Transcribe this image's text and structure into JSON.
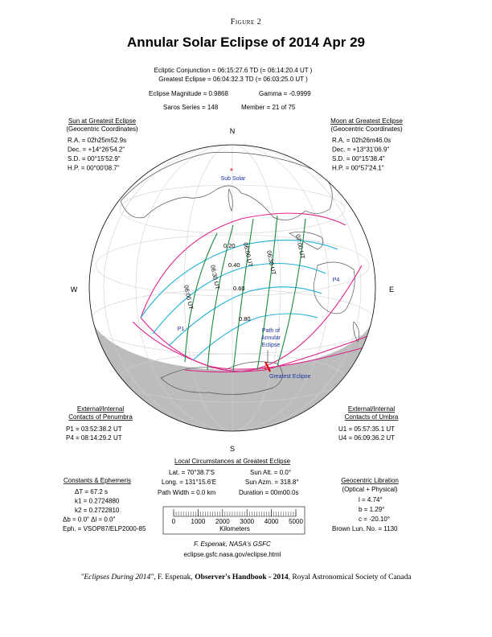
{
  "figure_label": "Figure 2",
  "title": "Annular Solar Eclipse of  2014 Apr 29",
  "summary": {
    "ecliptic_conjunction": "Ecliptic Conjunction = 06:15:27.6 TD   (= 06:14:20.4 UT )",
    "greatest_eclipse": "Greatest Eclipse = 06:04:32.3 TD   (= 06:03:25.0 UT )",
    "magnitude": "Eclipse Magnitude = 0.9868",
    "gamma": "Gamma = -0.9999",
    "saros": "Saros Series = 148",
    "member": "Member = 21 of 75"
  },
  "sun": {
    "heading": "Sun at Greatest Eclipse",
    "subheading": "(Geocentric Coordinates)",
    "rows": [
      "R.A. = 02h25m52.9s",
      "Dec. = +14°26'54.2\"",
      "S.D. = 00°15'52.9\"",
      "H.P. = 00°00'08.7\""
    ]
  },
  "moon": {
    "heading": "Moon at Greatest Eclipse",
    "subheading": "(Geocentric Coordinates)",
    "rows": [
      "R.A. = 02h26m46.0s",
      "Dec. = +13°31'06.9\"",
      "S.D. = 00°15'38.4\"",
      "H.P. = 00°57'24.1\""
    ]
  },
  "compass": {
    "n": "N",
    "s": "S",
    "e": "E",
    "w": "W"
  },
  "map_labels": {
    "sub_solar": "Sub Solar",
    "p1": "P1",
    "p4": "P4",
    "path": [
      "Path of",
      "Annular",
      "Eclipse"
    ],
    "greatest_eclipse": "Greatest Eclipse",
    "times": [
      "06:00 UT",
      "06:30 UT",
      "06:00 UT",
      "06:30 UT",
      "07:00 UT"
    ],
    "magnitudes": [
      "0.20",
      "0.40",
      "0.60",
      "0.80"
    ]
  },
  "penumbra_contacts": {
    "heading": [
      "External/Internal",
      "Contacts of Penumbra"
    ],
    "rows": [
      "P1 = 03:52:38.2 UT",
      "P4 = 08:14:29.2 UT"
    ]
  },
  "umbra_contacts": {
    "heading": [
      "External/Internal",
      "Contacts of Umbra"
    ],
    "rows": [
      "U1 = 05:57:35.1 UT",
      "U4 = 06:09:36.2 UT"
    ]
  },
  "local_circumstances": {
    "heading": "Local Circumstances at Greatest Eclipse",
    "lat": "Lat. = 70°38.7'S",
    "sun_alt": "Sun Alt. =   0.0°",
    "long": "Long. = 131°15.6'E",
    "sun_azm": "Sun Azm. = 318.8°",
    "path_width": "Path Width =   0.0 km",
    "duration": "Duration = 00m00.0s"
  },
  "constants": {
    "heading": "Constants & Ephemeris",
    "rows": [
      "ΔT =    67.2 s",
      "k1 = 0.2724880",
      "k2 = 0.2722810",
      "Δb =  0.0\"     Δl =  0.0\"",
      "Eph. = VSOP87/ELP2000-85"
    ]
  },
  "libration": {
    "heading": "Geocentric Libration",
    "subheading": "(Optical + Physical)",
    "rows": [
      "l =   4.74°",
      "b =   1.29°",
      "c = -20.10°",
      "Brown Lun. No. = 1130"
    ]
  },
  "scale": {
    "ticks": [
      0,
      1000,
      2000,
      3000,
      4000,
      5000
    ],
    "unit": "Kilometers"
  },
  "credit": "F. Espenak, NASA's GSFC",
  "url": "eclipse.gsfc.nasa.gov/eclipse.html",
  "footer": [
    "\"Eclipses During 2014\"",
    ", F. Espenak, ",
    "Observer's Handbook - 2014",
    ", Royal Astronomical Society of Canada"
  ]
}
